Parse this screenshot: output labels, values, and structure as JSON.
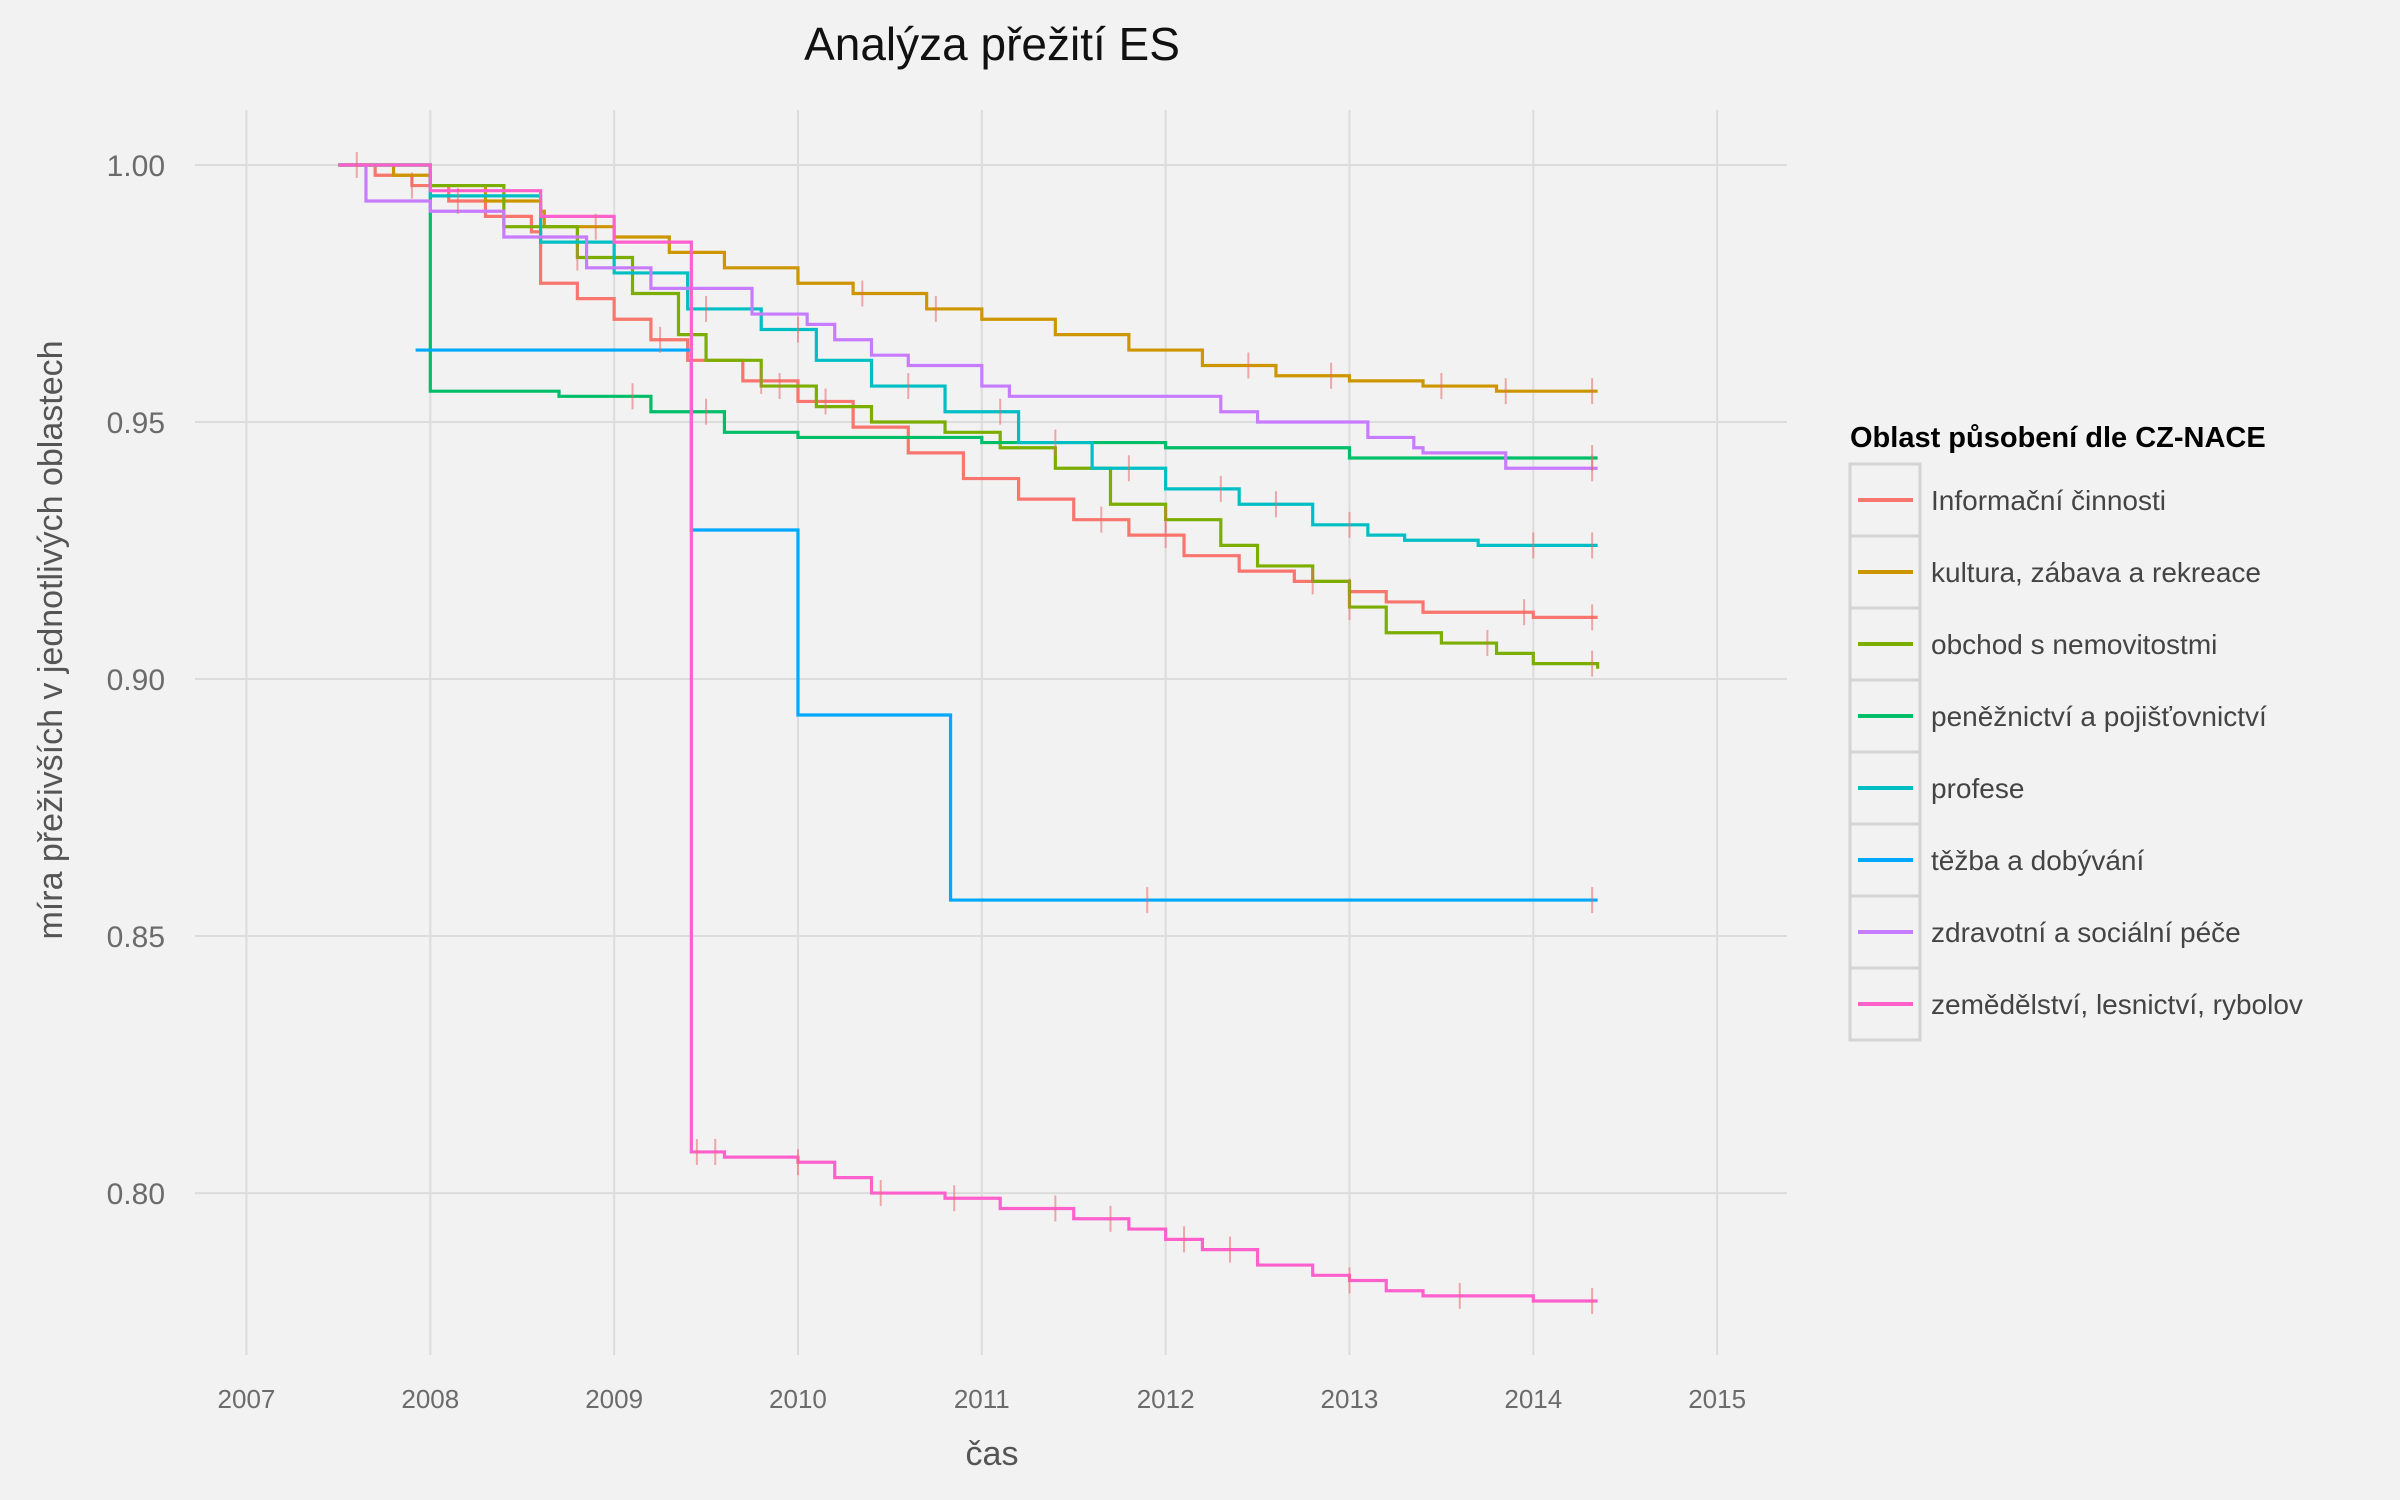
{
  "chart_data": {
    "type": "line",
    "step": true,
    "title": "Analýza přežití ES",
    "xlabel": "čas",
    "ylabel": "míra přeživších v jednotlivých oblastech",
    "xlim": [
      2006.72,
      2015.38
    ],
    "ylim": [
      0.7685,
      1.0107
    ],
    "xticks": [
      2007,
      2008,
      2009,
      2010,
      2011,
      2012,
      2013,
      2014,
      2015
    ],
    "yticks": [
      0.8,
      0.85,
      0.9,
      0.95,
      1.0
    ],
    "ytick_labels": [
      "0.80",
      "0.85",
      "0.90",
      "0.95",
      "1.00"
    ],
    "grid": true,
    "legend_title": "Oblast působení dle CZ-NACE",
    "legend_position": "right",
    "colors": {
      "background": "#f2f2f2",
      "grid": "#dcdcdc",
      "axis_text": "#6b6b6b",
      "censor_mark": "#e8696b"
    },
    "series": [
      {
        "name": "Informační činnosti",
        "color": "#f8766d",
        "x": [
          2007.5,
          2007.7,
          2007.9,
          2008.1,
          2008.3,
          2008.55,
          2008.6,
          2008.8,
          2009.0,
          2009.2,
          2009.4,
          2009.7,
          2010.0,
          2010.3,
          2010.6,
          2010.9,
          2011.2,
          2011.5,
          2011.8,
          2012.1,
          2012.4,
          2012.7,
          2013.0,
          2013.2,
          2013.4,
          2014.0,
          2014.35
        ],
        "y": [
          1.0,
          0.998,
          0.996,
          0.993,
          0.99,
          0.987,
          0.977,
          0.974,
          0.97,
          0.966,
          0.962,
          0.958,
          0.954,
          0.949,
          0.944,
          0.939,
          0.935,
          0.931,
          0.928,
          0.924,
          0.921,
          0.919,
          0.917,
          0.915,
          0.913,
          0.912,
          0.912
        ],
        "censored": [
          2007.6,
          2007.9,
          2008.15,
          2009.25,
          2009.8,
          2010.15,
          2011.65,
          2012.0,
          2012.8,
          2013.0,
          2013.95,
          2014.32
        ]
      },
      {
        "name": "kultura, zábava a rekreace",
        "color": "#cd9600",
        "x": [
          2007.5,
          2007.8,
          2008.0,
          2008.3,
          2008.6,
          2008.62,
          2009.0,
          2009.3,
          2009.6,
          2010.0,
          2010.3,
          2010.7,
          2011.0,
          2011.4,
          2011.8,
          2012.2,
          2012.6,
          2013.0,
          2013.4,
          2013.8,
          2014.35
        ],
        "y": [
          1.0,
          0.998,
          0.996,
          0.993,
          0.991,
          0.988,
          0.986,
          0.983,
          0.98,
          0.977,
          0.975,
          0.972,
          0.97,
          0.967,
          0.964,
          0.961,
          0.959,
          0.958,
          0.957,
          0.956,
          0.956
        ],
        "censored": [
          2008.9,
          2010.35,
          2010.75,
          2012.45,
          2012.9,
          2013.5,
          2013.85,
          2014.32
        ]
      },
      {
        "name": "obchod s nemovitostmi",
        "color": "#7cae00",
        "x": [
          2007.5,
          2008.0,
          2008.4,
          2008.8,
          2009.1,
          2009.35,
          2009.5,
          2009.8,
          2010.1,
          2010.4,
          2010.8,
          2011.1,
          2011.4,
          2011.7,
          2012.0,
          2012.3,
          2012.5,
          2012.8,
          2013.0,
          2013.2,
          2013.5,
          2013.8,
          2014.0,
          2014.35
        ],
        "y": [
          1.0,
          0.996,
          0.988,
          0.982,
          0.975,
          0.967,
          0.962,
          0.957,
          0.953,
          0.95,
          0.948,
          0.945,
          0.941,
          0.934,
          0.931,
          0.926,
          0.922,
          0.919,
          0.914,
          0.909,
          0.907,
          0.905,
          0.903,
          0.902
        ],
        "censored": [
          2008.8,
          2009.9,
          2012.0,
          2013.0,
          2013.75,
          2014.32
        ]
      },
      {
        "name": "peněžnictví a pojišťovnictví",
        "color": "#00be67",
        "x": [
          2007.5,
          2008.0,
          2008.7,
          2009.2,
          2009.6,
          2010.0,
          2011.0,
          2012.0,
          2013.0,
          2014.35
        ],
        "y": [
          1.0,
          0.956,
          0.955,
          0.952,
          0.948,
          0.947,
          0.946,
          0.945,
          0.943,
          0.943
        ],
        "censored": [
          2009.1,
          2009.5,
          2014.32
        ]
      },
      {
        "name": "profese",
        "color": "#00bfc4",
        "x": [
          2007.5,
          2008.0,
          2008.6,
          2009.0,
          2009.4,
          2009.8,
          2010.1,
          2010.4,
          2010.8,
          2011.2,
          2011.6,
          2012.0,
          2012.4,
          2012.8,
          2013.1,
          2013.3,
          2013.7,
          2014.35
        ],
        "y": [
          1.0,
          0.994,
          0.985,
          0.979,
          0.972,
          0.968,
          0.962,
          0.957,
          0.952,
          0.946,
          0.941,
          0.937,
          0.934,
          0.93,
          0.928,
          0.927,
          0.926,
          0.926
        ],
        "censored": [
          2009.5,
          2010.0,
          2010.6,
          2011.1,
          2011.4,
          2011.8,
          2012.3,
          2012.6,
          2013.0,
          2014.0,
          2014.32
        ]
      },
      {
        "name": "těžba a dobývání",
        "color": "#00a9ff",
        "x": [
          2007.92,
          2009.42,
          2010.0,
          2010.83,
          2014.35
        ],
        "y": [
          0.964,
          0.929,
          0.893,
          0.857,
          0.857
        ],
        "censored": [
          2011.9,
          2014.32
        ]
      },
      {
        "name": "zdravotní a sociální péče",
        "color": "#c77cff",
        "x": [
          2007.5,
          2007.65,
          2008.0,
          2008.4,
          2008.85,
          2009.2,
          2009.75,
          2010.05,
          2010.2,
          2010.4,
          2010.6,
          2011.0,
          2011.15,
          2011.3,
          2011.5,
          2012.3,
          2012.5,
          2013.1,
          2013.35,
          2013.4,
          2013.85,
          2014.35
        ],
        "y": [
          1.0,
          0.993,
          0.991,
          0.986,
          0.98,
          0.976,
          0.971,
          0.969,
          0.966,
          0.963,
          0.961,
          0.957,
          0.955,
          0.955,
          0.955,
          0.952,
          0.95,
          0.947,
          0.945,
          0.944,
          0.941,
          0.941
        ],
        "censored": [
          2014.32
        ]
      },
      {
        "name": "zemědělství, lesnictví, rybolov",
        "color": "#ff61cc",
        "x": [
          2007.5,
          2008.0,
          2008.6,
          2009.0,
          2009.42,
          2009.6,
          2010.0,
          2010.2,
          2010.4,
          2010.8,
          2011.1,
          2011.5,
          2011.8,
          2012.0,
          2012.2,
          2012.5,
          2012.8,
          2013.0,
          2013.2,
          2013.4,
          2014.0,
          2014.35
        ],
        "y": [
          1.0,
          0.995,
          0.99,
          0.985,
          0.808,
          0.807,
          0.806,
          0.803,
          0.8,
          0.799,
          0.797,
          0.795,
          0.793,
          0.791,
          0.789,
          0.786,
          0.784,
          0.783,
          0.781,
          0.78,
          0.779,
          0.779
        ],
        "censored": [
          2009.45,
          2009.55,
          2010.0,
          2010.45,
          2010.85,
          2011.4,
          2011.7,
          2012.1,
          2012.35,
          2013.0,
          2013.6,
          2014.32
        ]
      }
    ]
  }
}
